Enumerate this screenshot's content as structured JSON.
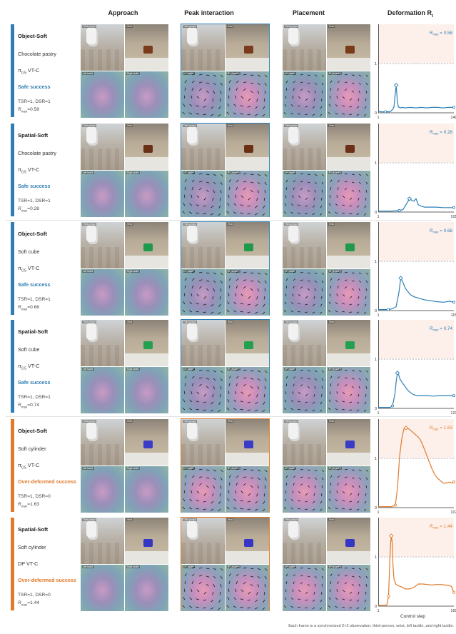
{
  "headers": {
    "approach": "Approach",
    "peak": "Peak interaction",
    "placement": "Placement",
    "deformation": "Deformation R",
    "deformation_sub": "t"
  },
  "frame_labels": {
    "third_person": "Third-person",
    "wrist": "Wrist",
    "left_tactile": "Left tactile",
    "right_tactile": "Right tactile"
  },
  "colors": {
    "safe": "#2f7fb5",
    "over": "#e07b2c",
    "limit_band": "#fdf0ea",
    "threshold": "#9aa6b8"
  },
  "chart_data": [
    {
      "type": "line",
      "title": "",
      "xlabel": "",
      "ylabel": "",
      "ylim": [
        0,
        1.8
      ],
      "threshold": 1,
      "band": [
        1,
        1.8
      ],
      "x": [
        1,
        6,
        10,
        14,
        18,
        22,
        25,
        28,
        30,
        32,
        34,
        36,
        38,
        42,
        46,
        50,
        60,
        70,
        80,
        90,
        100,
        110,
        120,
        130,
        140
      ],
      "values": [
        0.03,
        0.02,
        0.02,
        0.02,
        0.02,
        0.02,
        0.04,
        0.08,
        0.12,
        0.35,
        0.56,
        0.25,
        0.12,
        0.1,
        0.11,
        0.1,
        0.11,
        0.1,
        0.11,
        0.1,
        0.11,
        0.11,
        0.1,
        0.11,
        0.11
      ],
      "peak_x": 34,
      "peak_value": 0.56,
      "xticks": [
        "1",
        "140"
      ],
      "rmax_label": "R",
      "rmax_sub": "max",
      "rmax_text": " = 0.58",
      "outcome": "safe"
    },
    {
      "type": "line",
      "title": "",
      "xlabel": "",
      "ylabel": "",
      "ylim": [
        0,
        1.8
      ],
      "threshold": 1,
      "band": [
        1,
        1.8
      ],
      "x": [
        1,
        10,
        20,
        30,
        35,
        40,
        44,
        47,
        50,
        53,
        56,
        60,
        65,
        70,
        80,
        90,
        100,
        105
      ],
      "values": [
        0.02,
        0.02,
        0.02,
        0.03,
        0.05,
        0.17,
        0.27,
        0.24,
        0.22,
        0.27,
        0.15,
        0.12,
        0.1,
        0.1,
        0.1,
        0.09,
        0.09,
        0.09
      ],
      "peak_x": 44,
      "peak_value": 0.27,
      "xticks": [
        "1",
        "105"
      ],
      "rmax_label": "R",
      "rmax_sub": "max",
      "rmax_text": " = 0.28",
      "outcome": "safe"
    },
    {
      "type": "line",
      "title": "",
      "xlabel": "",
      "ylabel": "",
      "ylim": [
        0,
        1.8
      ],
      "threshold": 1,
      "band": [
        1,
        1.8
      ],
      "x": [
        1,
        5,
        10,
        16,
        20,
        24,
        28,
        32,
        35,
        38,
        42,
        46,
        50,
        55,
        60,
        70,
        80,
        90,
        100,
        108,
        115
      ],
      "values": [
        0.02,
        0.02,
        0.02,
        0.02,
        0.03,
        0.05,
        0.08,
        0.35,
        0.66,
        0.58,
        0.45,
        0.38,
        0.32,
        0.28,
        0.26,
        0.22,
        0.2,
        0.18,
        0.17,
        0.19,
        0.17
      ],
      "peak_x": 35,
      "peak_value": 0.66,
      "xticks": [
        "1",
        "115"
      ],
      "rmax_label": "R",
      "rmax_sub": "max",
      "rmax_text": " = 0.68",
      "outcome": "safe"
    },
    {
      "type": "line",
      "title": "",
      "xlabel": "",
      "ylabel": "",
      "ylim": [
        0,
        1.8
      ],
      "threshold": 1,
      "band": [
        1,
        1.8
      ],
      "x": [
        1,
        10,
        20,
        24,
        28,
        30,
        32,
        34,
        36,
        40,
        44,
        48,
        52,
        58,
        64,
        70,
        80,
        90,
        100,
        110,
        123
      ],
      "values": [
        0.02,
        0.02,
        0.02,
        0.05,
        0.3,
        0.55,
        0.72,
        0.68,
        0.6,
        0.52,
        0.45,
        0.38,
        0.33,
        0.28,
        0.26,
        0.26,
        0.26,
        0.25,
        0.26,
        0.26,
        0.26
      ],
      "peak_x": 32,
      "peak_value": 0.72,
      "xticks": [
        "1",
        "123"
      ],
      "rmax_label": "R",
      "rmax_sub": "max",
      "rmax_text": " = 0.74",
      "outcome": "safe"
    },
    {
      "type": "line",
      "title": "",
      "xlabel": "",
      "ylabel": "",
      "ylim": [
        0,
        1.8
      ],
      "threshold": 1,
      "band": [
        1,
        1.8
      ],
      "x": [
        1,
        10,
        20,
        25,
        28,
        31,
        34,
        37,
        40,
        44,
        48,
        52,
        56,
        60,
        64,
        68,
        72,
        76,
        80,
        84,
        88,
        92,
        96,
        100,
        104,
        107
      ],
      "values": [
        0.02,
        0.02,
        0.02,
        0.05,
        0.4,
        1.05,
        1.4,
        1.6,
        1.62,
        1.6,
        1.55,
        1.5,
        1.45,
        1.38,
        1.25,
        1.1,
        0.95,
        0.8,
        0.68,
        0.6,
        0.55,
        0.5,
        0.5,
        0.52,
        0.5,
        0.52
      ],
      "peak_x": 40,
      "peak_value": 1.62,
      "xticks": [
        "1",
        "107"
      ],
      "rmax_label": "R",
      "rmax_sub": "max",
      "rmax_text": " = 1.63",
      "outcome": "over"
    },
    {
      "type": "line",
      "title": "",
      "xlabel": "Control step",
      "ylabel": "",
      "ylim": [
        0,
        1.8
      ],
      "threshold": 1,
      "band": [
        1,
        1.8
      ],
      "x": [
        1,
        10,
        20,
        24,
        26,
        28,
        30,
        32,
        34,
        36,
        40,
        44,
        50,
        56,
        60,
        70,
        80,
        90,
        100,
        110,
        120,
        130,
        140,
        150,
        158,
        164,
        169
      ],
      "values": [
        0.02,
        0.02,
        0.02,
        0.2,
        0.75,
        1.2,
        1.43,
        1.3,
        0.8,
        0.55,
        0.45,
        0.42,
        0.4,
        0.38,
        0.35,
        0.35,
        0.38,
        0.45,
        0.45,
        0.44,
        0.43,
        0.44,
        0.44,
        0.43,
        0.42,
        0.4,
        0.28
      ],
      "peak_x": 30,
      "peak_value": 1.43,
      "xticks": [
        "1",
        "169"
      ],
      "rmax_label": "R",
      "rmax_sub": "max",
      "rmax_text": " = 1.44",
      "outcome": "over"
    }
  ],
  "rows": [
    {
      "setting": "Object-Soft",
      "object": "Chocolate pastry",
      "policy_main": "π",
      "policy_sub": "0.5",
      "policy_rest": " VT-C",
      "outcome": "Safe success",
      "metrics": "TSR=1, DSR=1",
      "rmax_prefix": "R",
      "rmax_sub": "max",
      "rmax_value": "=0.58",
      "kind": "safe",
      "object_color": "#7a3b1c"
    },
    {
      "setting": "Spatial-Soft",
      "object": "Chocolate pastry",
      "policy_main": "π",
      "policy_sub": "0.5",
      "policy_rest": " VT-C",
      "outcome": "Safe success",
      "metrics": "TSR=1, DSR=1",
      "rmax_prefix": "R",
      "rmax_sub": "max",
      "rmax_value": "=0.28",
      "kind": "safe",
      "object_color": "#6b2f16"
    },
    {
      "setting": "Object-Soft",
      "object": "Soft cube",
      "policy_main": "π",
      "policy_sub": "0.5",
      "policy_rest": " VT-C",
      "outcome": "Safe success",
      "metrics": "TSR=1, DSR=1",
      "rmax_prefix": "R",
      "rmax_sub": "max",
      "rmax_value": "=0.68",
      "kind": "safe",
      "object_color": "#1f9a4c"
    },
    {
      "setting": "Spatial-Soft",
      "object": "Soft cube",
      "policy_main": "π",
      "policy_sub": "0.5",
      "policy_rest": " VT-C",
      "outcome": "Safe success",
      "metrics": "TSR=1, DSR=1",
      "rmax_prefix": "R",
      "rmax_sub": "max",
      "rmax_value": "=0.74",
      "kind": "safe",
      "object_color": "#22a050"
    },
    {
      "setting": "Object-Soft",
      "object": "Soft cylinder",
      "policy_main": "π",
      "policy_sub": "0.5",
      "policy_rest": " VT-C",
      "outcome": "Over-deformed success",
      "metrics": "TSR=1, DSR=0",
      "rmax_prefix": "R",
      "rmax_sub": "max",
      "rmax_value": "=1.63",
      "kind": "over",
      "object_color": "#3a3cc8"
    },
    {
      "setting": "Spatial-Soft",
      "object": "Soft cylinder",
      "policy_main": "DP",
      "policy_sub": "",
      "policy_rest": " VT-C",
      "outcome": "Over-deformed success",
      "metrics": "TSR=1, DSR=0",
      "rmax_prefix": "R",
      "rmax_sub": "max",
      "rmax_value": "=1.44",
      "kind": "over",
      "object_color": "#3536c4"
    }
  ],
  "caption": "Each frame is a synchronized 2×2 observation: third-person, wrist, left tactile, and right tactile."
}
